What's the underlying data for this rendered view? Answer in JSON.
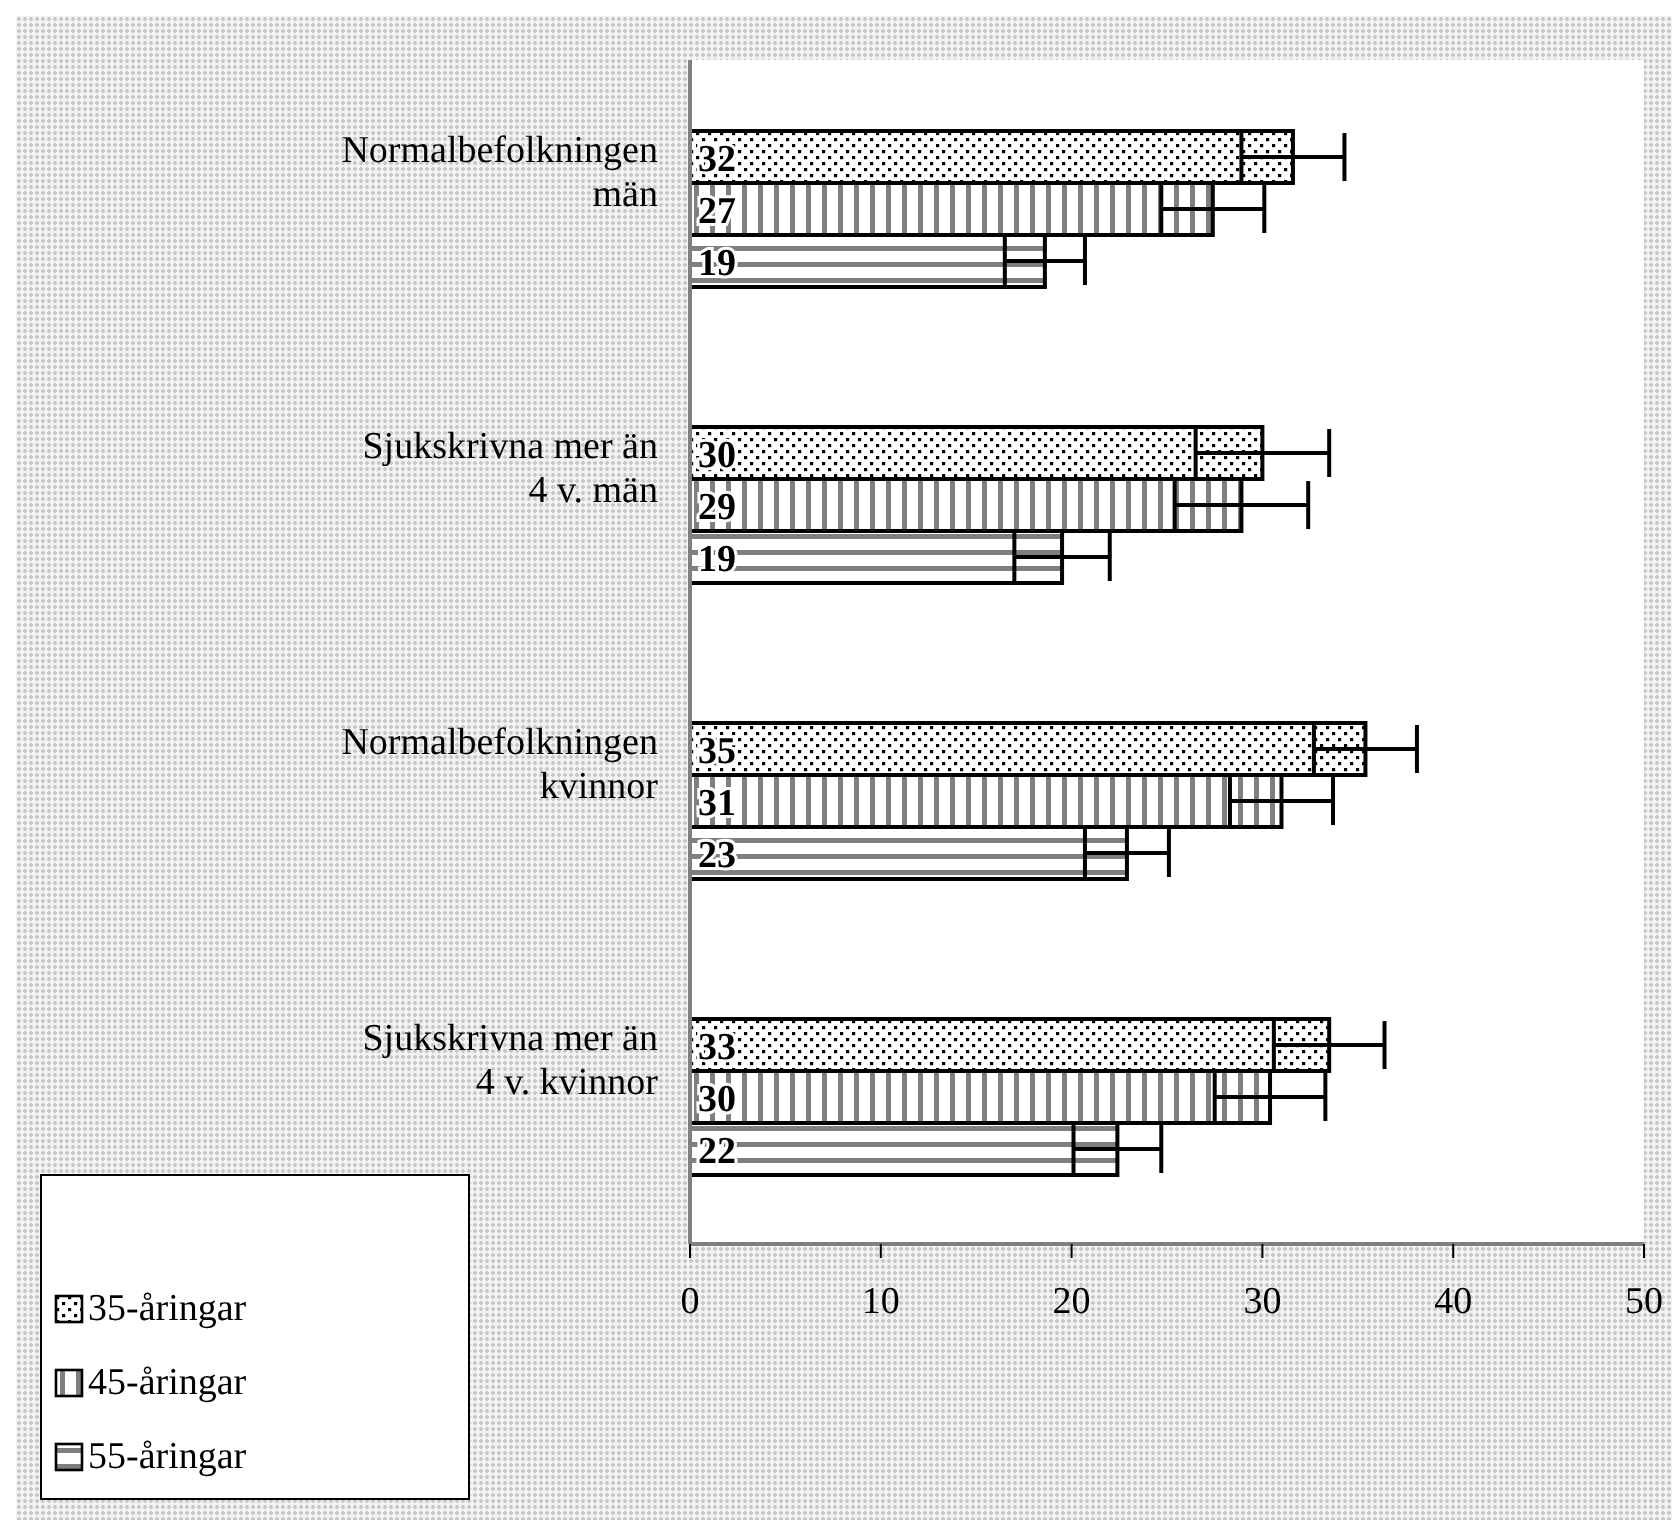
{
  "chart_data": {
    "type": "bar",
    "orientation": "horizontal",
    "categories": [
      "Normalbefolkningen män",
      "Sjukskrivna mer än 4 v. män",
      "Normalbefolkningen kvinnor",
      "Sjukskrivna mer än 4 v. kvinnor"
    ],
    "series": [
      {
        "name": "35-åringar",
        "color": "#000000",
        "values": [
          31.6,
          30.0,
          35.4,
          33.5
        ],
        "errors": [
          2.7,
          3.5,
          2.7,
          2.9
        ],
        "value_labels": [
          "32",
          "30",
          "35",
          "33"
        ]
      },
      {
        "name": "45-åringar",
        "color": "#000000",
        "values": [
          27.4,
          28.9,
          31.0,
          30.4
        ],
        "errors": [
          2.7,
          3.5,
          2.7,
          2.9
        ],
        "value_labels": [
          "27",
          "29",
          "31",
          "30"
        ]
      },
      {
        "name": "55-åringar",
        "color": "#000000",
        "values": [
          18.6,
          19.5,
          22.9,
          22.4
        ],
        "errors": [
          2.1,
          2.5,
          2.2,
          2.3
        ],
        "value_labels": [
          "19",
          "19",
          "23",
          "22"
        ]
      }
    ],
    "xlim": [
      0,
      50
    ],
    "xticks": [
      0,
      10,
      20,
      30,
      40,
      50
    ],
    "grid": false,
    "legend": "bottom left"
  }
}
